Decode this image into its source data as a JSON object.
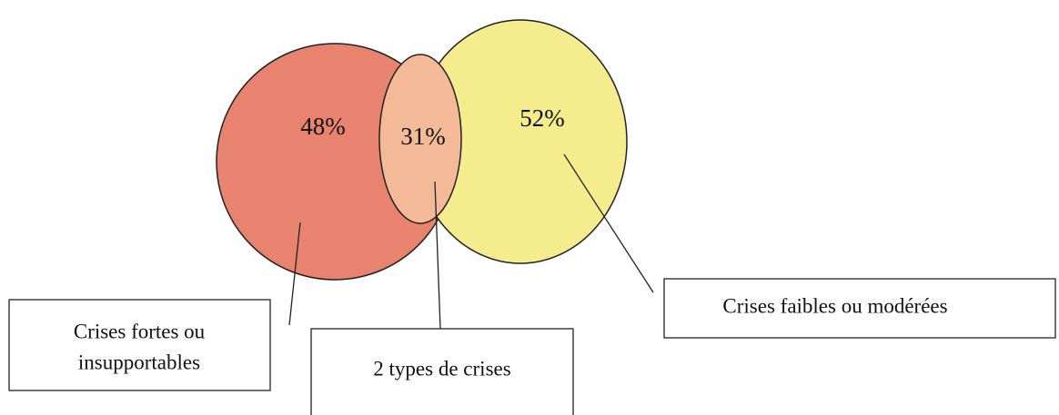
{
  "sets": [
    {
      "value_label": "48%",
      "label": [
        "Crises fortes ou",
        "insupportables"
      ]
    },
    {
      "value_label": "31%",
      "label": [
        "2 types de crises"
      ]
    },
    {
      "value_label": "52%",
      "label": [
        "Crises faibles ou modérées"
      ]
    }
  ]
}
